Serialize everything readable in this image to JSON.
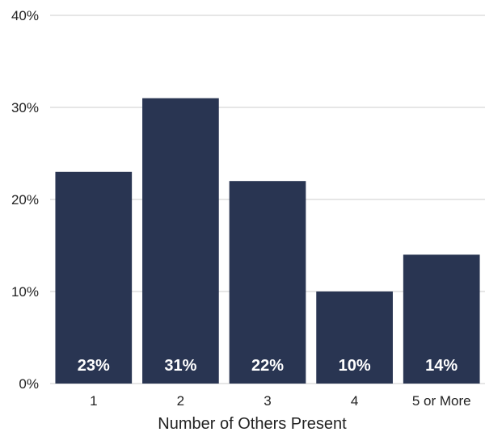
{
  "chart_data": {
    "type": "bar",
    "categories": [
      "1",
      "2",
      "3",
      "4",
      "5 or More"
    ],
    "values": [
      23,
      31,
      22,
      10,
      14
    ],
    "data_labels": [
      "23%",
      "31%",
      "22%",
      "10%",
      "14%"
    ],
    "title": "",
    "xlabel": "Number of Others Present",
    "ylabel": "",
    "ylim": [
      0,
      40
    ],
    "yticks": [
      0,
      10,
      20,
      30,
      40
    ],
    "ytick_labels": [
      "0%",
      "10%",
      "20%",
      "30%",
      "40%"
    ],
    "grid": true,
    "legend": "none"
  },
  "colors": {
    "bar": "#293552",
    "grid": "#cccccc",
    "text": "#222222",
    "data_label": "#ffffff"
  }
}
